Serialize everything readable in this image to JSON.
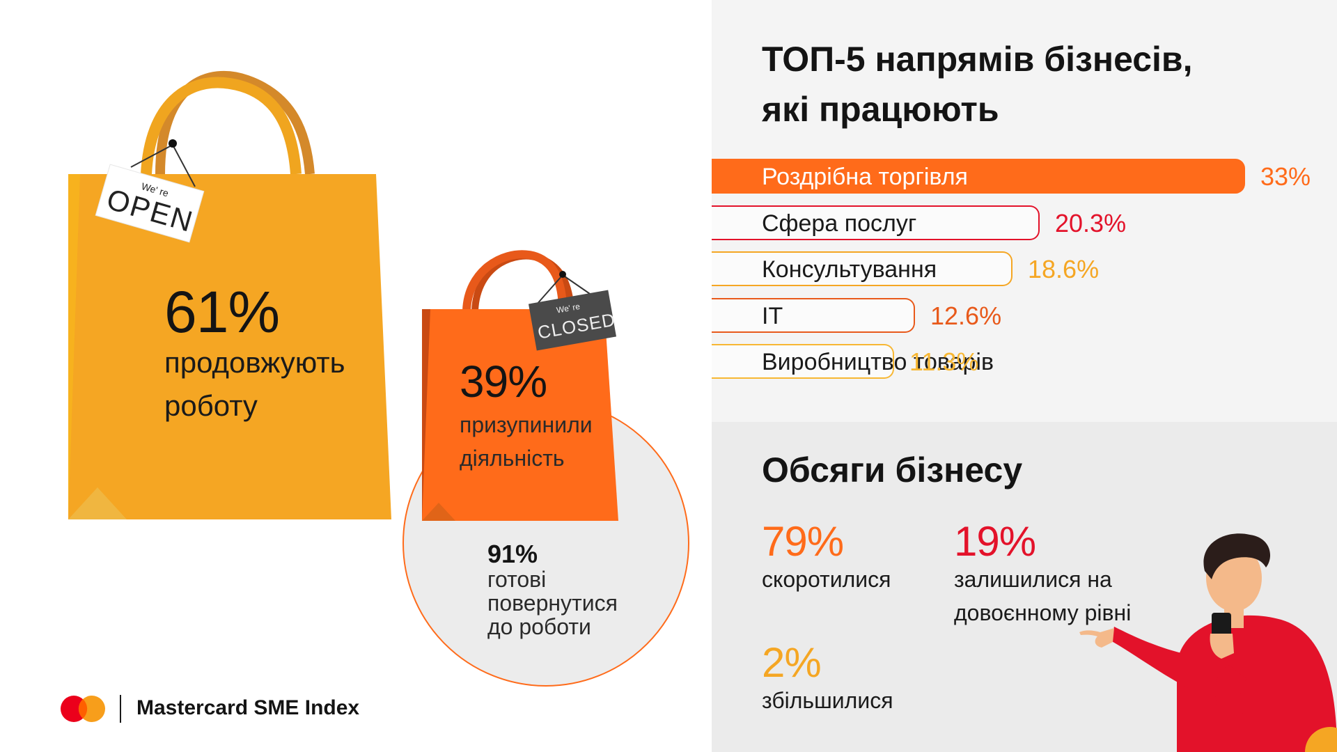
{
  "left": {
    "open_sign": {
      "small": "We' re",
      "big": "OPEN"
    },
    "closed_sign": {
      "small": "We' re",
      "big": "CLOSED"
    },
    "working": {
      "pct": "61%",
      "line1": "продовжують",
      "line2": "роботу"
    },
    "paused": {
      "pct": "39%",
      "line1": "призупинили",
      "line2": "діяльність"
    },
    "ready": {
      "pct": "91%",
      "line1": "готові",
      "line2": "повернутися",
      "line3": "до роботи"
    }
  },
  "brand": {
    "name": "Mastercard SME Index"
  },
  "top5": {
    "title_line1": "ТОП-5 напрямів бізнесів,",
    "title_line2": "які працюють"
  },
  "volume": {
    "title": "Обсяги бізнесу",
    "decreased": {
      "pct": "79%",
      "label": "скоротилися"
    },
    "same": {
      "pct": "19%",
      "line1": "залишилися на",
      "line2": "довоєнному рівні"
    },
    "increased": {
      "pct": "2%",
      "label": "збільшилися"
    }
  },
  "colors": {
    "orange_main": "#ff6b1a",
    "red": "#e3122a",
    "amber": "#f5a623",
    "dark_orange": "#e8591a",
    "yellow": "#f7b733",
    "bag_yellow": "#f5a623",
    "bag_orange": "#ff6b1a"
  },
  "chart_data": {
    "type": "bar",
    "orientation": "horizontal",
    "title": "ТОП-5 напрямів бізнесів, які працюють",
    "categories": [
      "Роздрібна торгівля",
      "Сфера послуг",
      "Консультування",
      "IT",
      "Виробництво товарів"
    ],
    "values": [
      33,
      20.3,
      18.6,
      12.6,
      11.3
    ],
    "value_labels": [
      "33%",
      "20.3%",
      "18.6%",
      "12.6%",
      "11.3%"
    ],
    "colors": [
      "#ff6b1a",
      "#e3122a",
      "#f5a623",
      "#e8591a",
      "#f7b733"
    ],
    "filled": [
      true,
      false,
      false,
      false,
      false
    ],
    "xlim": [
      0,
      33
    ],
    "grid": false
  }
}
